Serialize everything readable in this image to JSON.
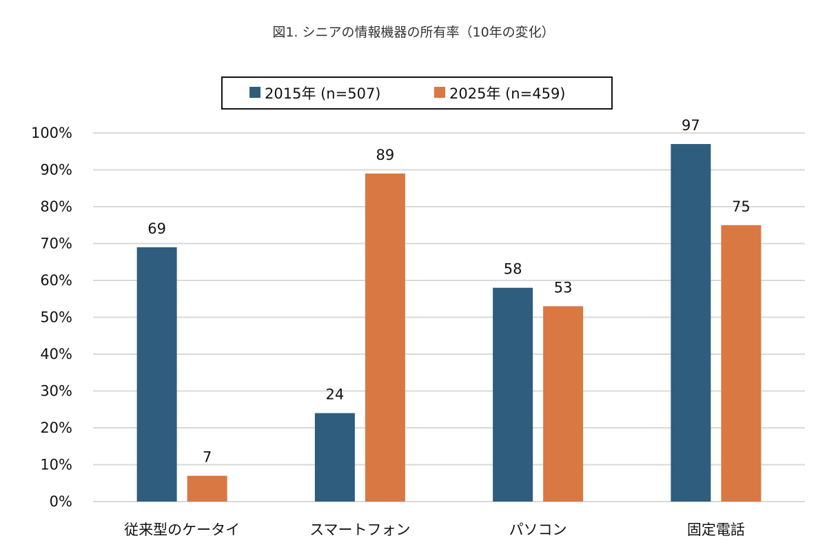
{
  "chart_data": {
    "type": "bar",
    "title": "図1. シニアの情報機器の所有率（10年の変化）",
    "xlabel": "",
    "ylabel": "",
    "ylim": [
      0,
      100
    ],
    "yticks": [
      0,
      10,
      20,
      30,
      40,
      50,
      60,
      70,
      80,
      90,
      100
    ],
    "ytick_labels": [
      "0%",
      "10%",
      "20%",
      "30%",
      "40%",
      "50%",
      "60%",
      "70%",
      "80%",
      "90%",
      "100%"
    ],
    "grid": true,
    "legend_position": "top-center",
    "categories": [
      "従来型のケータイ",
      "スマートフォン",
      "パソコン",
      "固定電話"
    ],
    "series": [
      {
        "name": "2015年 (n=507)",
        "color": "#2E5D7E",
        "values": [
          69,
          24,
          58,
          97
        ]
      },
      {
        "name": "2025年 (n=459)",
        "color": "#D97842",
        "values": [
          7,
          89,
          53,
          75
        ]
      }
    ]
  }
}
